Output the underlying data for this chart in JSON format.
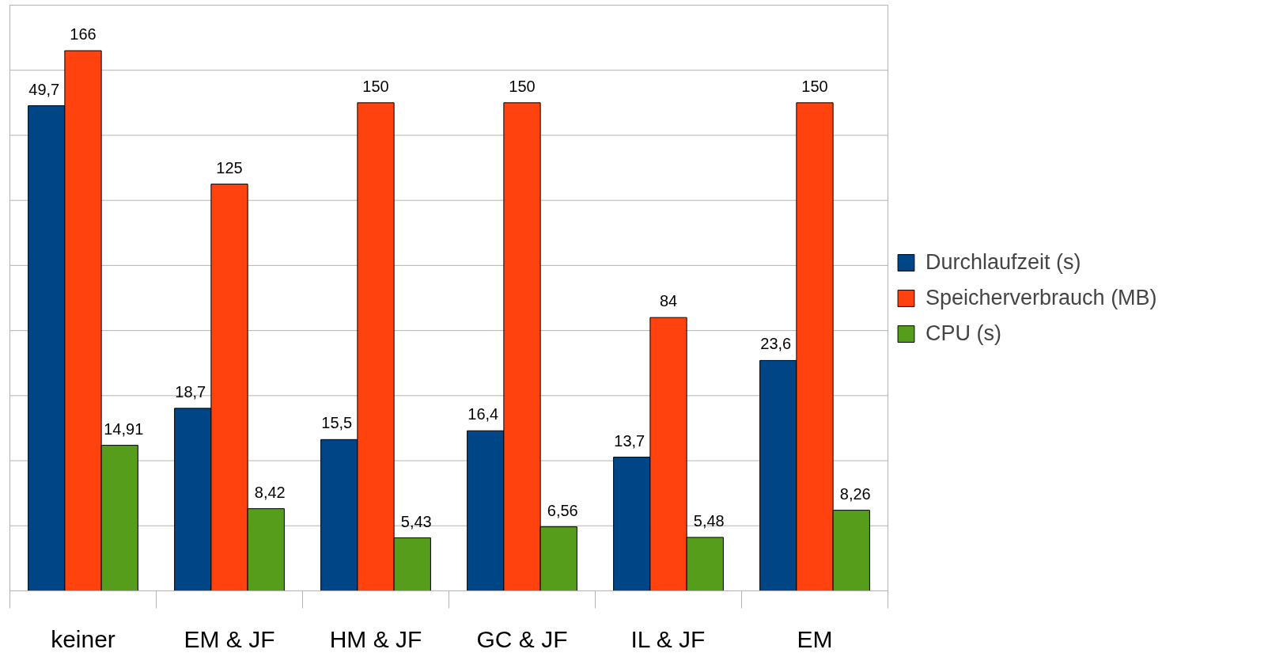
{
  "chart_data": {
    "type": "bar",
    "categories": [
      "keiner",
      "EM & JF",
      "HM & JF",
      "GC & JF",
      "IL & JF",
      "EM"
    ],
    "series": [
      {
        "name": "Durchlaufzeit (s)",
        "color": "#004586",
        "values": [
          49.7,
          18.7,
          15.5,
          16.4,
          13.7,
          23.6
        ],
        "value_labels": [
          "49,7",
          "18,7",
          "15,5",
          "16,4",
          "13,7",
          "23,6"
        ]
      },
      {
        "name": "Speicherverbrauch (MB)",
        "color": "#ff420e",
        "axis": "y2",
        "values": [
          166,
          125,
          150,
          150,
          84,
          150
        ],
        "value_labels": [
          "166",
          "125",
          "150",
          "150",
          "84",
          "150"
        ]
      },
      {
        "name": "CPU (s)",
        "color": "#579d1c",
        "values": [
          14.91,
          8.42,
          5.43,
          6.56,
          5.48,
          8.26
        ],
        "value_labels": [
          "14,91",
          "8,42",
          "5,43",
          "6,56",
          "5,48",
          "8,26"
        ]
      }
    ],
    "ylim": [
      0,
      60
    ],
    "y2lim": [
      0,
      180
    ],
    "y2ticks": [
      {
        "value": 0,
        "label": null
      },
      {
        "value": 20,
        "label": null
      },
      {
        "value": 40,
        "label": null
      },
      {
        "value": 60,
        "label": null
      },
      {
        "value": 80,
        "label": null
      },
      {
        "value": 100,
        "label": null
      },
      {
        "value": 120,
        "label": null
      },
      {
        "value": 140,
        "label": null
      },
      {
        "value": 160,
        "label": null
      },
      {
        "value": 180,
        "label": null
      }
    ],
    "tick_labels": "x",
    "grid": "y",
    "legend": "right"
  }
}
